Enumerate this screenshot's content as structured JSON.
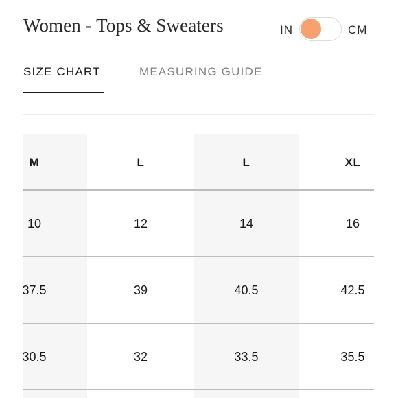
{
  "header": {
    "title": "Women - Tops & Sweaters",
    "unit_toggle": {
      "left_label": "IN",
      "right_label": "CM",
      "selected": "IN",
      "knob_color": "#f9a06f"
    }
  },
  "tabs": [
    {
      "label": "SIZE CHART",
      "active": true
    },
    {
      "label": "MEASURING GUIDE",
      "active": false
    }
  ],
  "size_table": {
    "headers": [
      "M",
      "L",
      "L",
      "XL"
    ],
    "rows": [
      [
        "10",
        "12",
        "14",
        "16"
      ],
      [
        "37.5",
        "39",
        "40.5",
        "42.5"
      ],
      [
        "30.5",
        "32",
        "33.5",
        "35.5"
      ]
    ]
  }
}
